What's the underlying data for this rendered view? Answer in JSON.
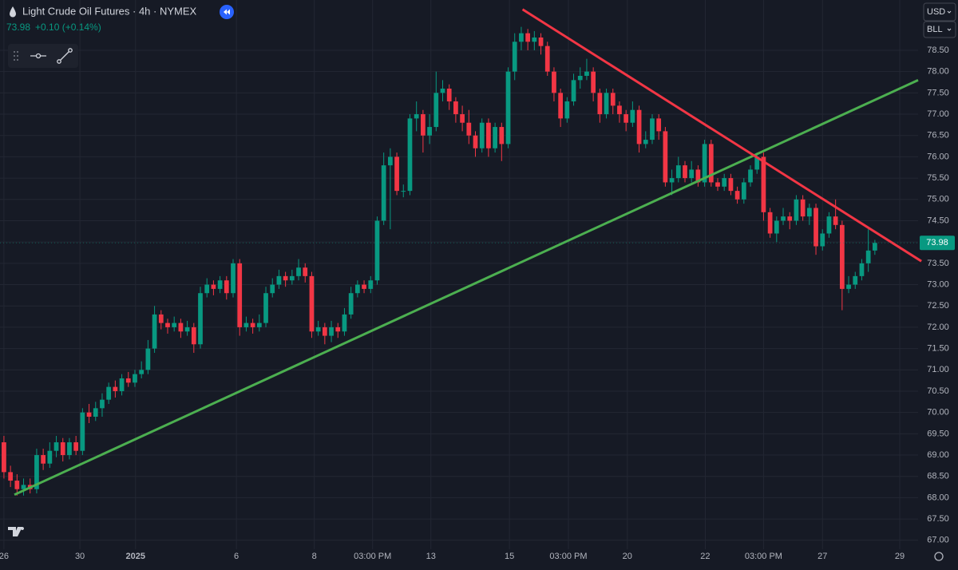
{
  "chart_data": {
    "type": "candlestick",
    "title": "Light Crude Oil Futures · 4h · NYMEX",
    "last_price": "73.98",
    "change": "+0.10 (+0.14%)",
    "currency": "USD",
    "unit": "BLL",
    "up_color": "#089981",
    "down_color": "#f23645",
    "open": [
      69.3,
      68.6,
      68.4,
      68.2,
      68.3,
      68.2,
      69.0,
      68.8,
      69.1,
      69.3,
      69.0,
      69.3,
      69.1,
      70.0,
      69.9,
      70.1,
      70.3,
      70.6,
      70.5,
      70.8,
      70.7,
      70.9,
      71.0,
      71.5,
      72.3,
      72.1,
      72.0,
      72.1,
      71.9,
      72.0,
      71.6,
      72.8,
      73.0,
      72.9,
      73.1,
      72.8,
      73.5,
      72.0,
      72.1,
      72.0,
      72.1,
      72.8,
      73.0,
      73.2,
      73.1,
      73.2,
      73.4,
      73.2,
      71.9,
      72.0,
      71.8,
      72.0,
      71.9,
      72.3,
      72.8,
      73.0,
      72.9,
      73.1,
      74.5,
      75.8,
      76.0,
      75.2,
      75.2,
      76.9,
      77.0,
      76.5,
      76.7,
      77.5,
      77.6,
      77.3,
      77.0,
      76.8,
      76.5,
      76.2,
      76.8,
      76.2,
      76.7,
      76.3,
      78.0,
      78.7,
      78.9,
      78.7,
      78.8,
      78.6,
      78.0,
      77.5,
      76.9,
      77.3,
      77.8,
      77.9,
      78.0,
      77.5,
      77.0,
      77.5,
      77.2,
      77.0,
      76.8,
      77.1,
      76.3,
      76.4,
      76.9,
      76.6,
      75.4,
      75.5,
      75.8,
      75.5,
      75.7,
      75.4,
      76.3,
      75.4,
      75.3,
      75.5,
      75.2,
      75.0,
      75.4,
      75.7,
      76.0,
      74.7,
      74.2,
      74.5,
      74.6,
      74.5,
      75.0,
      74.6,
      74.8,
      73.9,
      74.2,
      74.6,
      74.4,
      72.9,
      73.0,
      73.2,
      73.5,
      73.8
    ],
    "high": [
      69.45,
      68.75,
      68.55,
      68.45,
      68.45,
      69.15,
      69.15,
      69.3,
      69.45,
      69.4,
      69.4,
      69.45,
      70.1,
      70.2,
      70.25,
      70.45,
      70.7,
      70.75,
      70.9,
      70.95,
      71.0,
      71.2,
      71.7,
      72.5,
      72.4,
      72.2,
      72.25,
      72.2,
      72.15,
      72.1,
      72.95,
      73.15,
      73.1,
      73.2,
      73.2,
      73.6,
      73.6,
      72.25,
      72.2,
      72.3,
      72.95,
      73.15,
      73.35,
      73.3,
      73.35,
      73.6,
      73.5,
      73.3,
      72.15,
      72.1,
      72.15,
      72.1,
      72.45,
      72.95,
      73.1,
      73.1,
      73.2,
      74.6,
      76.1,
      76.2,
      76.1,
      75.35,
      77.0,
      77.3,
      77.1,
      77.0,
      78.0,
      77.8,
      77.7,
      77.4,
      77.2,
      77.1,
      76.6,
      76.9,
      76.9,
      76.8,
      76.8,
      78.1,
      78.9,
      79.05,
      79.0,
      78.95,
      78.9,
      78.7,
      78.1,
      77.6,
      77.4,
      77.95,
      78.1,
      78.3,
      78.1,
      77.6,
      77.6,
      77.6,
      77.3,
      77.1,
      77.3,
      77.2,
      76.6,
      77.0,
      77.0,
      76.7,
      75.7,
      76.0,
      75.9,
      75.9,
      75.8,
      76.4,
      76.4,
      75.5,
      75.6,
      75.6,
      75.3,
      75.5,
      75.8,
      76.1,
      76.1,
      74.8,
      74.6,
      74.8,
      74.7,
      75.1,
      75.1,
      74.9,
      74.9,
      74.3,
      74.7,
      75.0,
      74.5,
      73.2,
      73.3,
      73.6,
      74.3,
      74.05
    ],
    "low": [
      68.45,
      68.25,
      68.05,
      68.05,
      68.1,
      68.1,
      68.65,
      68.7,
      68.95,
      68.85,
      68.9,
      69.0,
      69.0,
      69.75,
      69.8,
      69.9,
      70.2,
      70.35,
      70.4,
      70.6,
      70.6,
      70.8,
      70.9,
      71.4,
      71.95,
      71.85,
      71.9,
      71.75,
      71.8,
      71.4,
      71.5,
      72.7,
      72.75,
      72.8,
      72.65,
      72.7,
      71.8,
      71.9,
      71.85,
      71.9,
      72.0,
      72.7,
      72.9,
      72.95,
      73.0,
      73.1,
      73.05,
      71.75,
      71.8,
      71.6,
      71.65,
      71.75,
      71.8,
      72.2,
      72.7,
      72.8,
      72.8,
      73.0,
      74.4,
      74.3,
      75.1,
      75.05,
      75.1,
      76.6,
      76.1,
      76.3,
      76.6,
      77.3,
      77.1,
      76.8,
      76.6,
      76.3,
      76.0,
      76.1,
      76.0,
      76.1,
      75.9,
      76.2,
      77.8,
      78.5,
      78.5,
      78.5,
      78.4,
      77.9,
      77.3,
      76.7,
      76.8,
      77.2,
      77.6,
      77.8,
      77.3,
      76.8,
      76.9,
      77.0,
      76.8,
      76.6,
      76.7,
      76.1,
      76.2,
      76.3,
      76.4,
      75.3,
      75.1,
      75.4,
      75.4,
      75.4,
      75.3,
      75.3,
      75.3,
      75.2,
      75.2,
      75.1,
      74.9,
      74.9,
      75.3,
      75.6,
      74.5,
      74.1,
      74.0,
      74.4,
      74.3,
      74.4,
      74.5,
      74.4,
      73.7,
      73.8,
      74.1,
      74.3,
      72.4,
      72.8,
      72.9,
      73.1,
      73.3,
      73.7
    ],
    "close": [
      68.6,
      68.4,
      68.2,
      68.3,
      68.2,
      69.0,
      68.8,
      69.1,
      69.3,
      69.0,
      69.3,
      69.1,
      70.0,
      69.9,
      70.1,
      70.3,
      70.6,
      70.5,
      70.8,
      70.7,
      70.9,
      71.0,
      71.5,
      72.3,
      72.1,
      72.0,
      72.1,
      71.9,
      72.0,
      71.6,
      72.8,
      73.0,
      72.9,
      73.1,
      72.8,
      73.5,
      72.0,
      72.1,
      72.0,
      72.1,
      72.8,
      73.0,
      73.2,
      73.1,
      73.2,
      73.4,
      73.2,
      71.9,
      72.0,
      71.8,
      72.0,
      71.9,
      72.3,
      72.8,
      73.0,
      72.9,
      73.1,
      74.5,
      75.8,
      76.0,
      75.2,
      75.2,
      76.9,
      77.0,
      76.5,
      76.7,
      77.5,
      77.6,
      77.3,
      77.0,
      76.8,
      76.5,
      76.2,
      76.8,
      76.2,
      76.7,
      76.3,
      78.0,
      78.7,
      78.9,
      78.7,
      78.8,
      78.6,
      78.0,
      77.5,
      76.9,
      77.3,
      77.8,
      77.9,
      78.0,
      77.5,
      77.0,
      77.5,
      77.2,
      77.0,
      76.8,
      77.1,
      76.3,
      76.4,
      76.9,
      76.6,
      75.4,
      75.5,
      75.8,
      75.5,
      75.7,
      75.4,
      76.3,
      75.4,
      75.3,
      75.5,
      75.2,
      75.0,
      75.4,
      75.7,
      76.0,
      74.7,
      74.2,
      74.5,
      74.6,
      74.5,
      75.0,
      74.6,
      74.8,
      73.9,
      74.2,
      74.6,
      74.4,
      72.9,
      73.0,
      73.2,
      73.5,
      73.8,
      73.98
    ],
    "trendlines": [
      {
        "color": "#4caf50",
        "x": [
          1.6,
          139.6
        ],
        "y": [
          68.07,
          77.8
        ]
      },
      {
        "color": "#f23645",
        "x": [
          79.2,
          140.1
        ],
        "y": [
          79.46,
          73.55
        ]
      }
    ],
    "xlim": [
      -0.6,
      139.6
    ],
    "xticks": [
      {
        "value": 0,
        "label": "26"
      },
      {
        "value": 11.6,
        "label": "30"
      },
      {
        "value": 20.1,
        "label": "2025"
      },
      {
        "value": 35.5,
        "label": "6"
      },
      {
        "value": 47.4,
        "label": "8"
      },
      {
        "value": 56.3,
        "label": "03:00 PM"
      },
      {
        "value": 65.2,
        "label": "13"
      },
      {
        "value": 77.2,
        "label": "15"
      },
      {
        "value": 86.2,
        "label": "03:00 PM"
      },
      {
        "value": 95.2,
        "label": "20"
      },
      {
        "value": 107.1,
        "label": "22"
      },
      {
        "value": 116,
        "label": "03:00 PM"
      },
      {
        "value": 125,
        "label": "27"
      },
      {
        "value": 136.8,
        "label": "29"
      }
    ],
    "ylim": [
      66.79,
      79.68
    ],
    "yticks": [
      {
        "value": 67,
        "label": "67.00"
      },
      {
        "value": 67.5,
        "label": "67.50"
      },
      {
        "value": 68,
        "label": "68.00"
      },
      {
        "value": 68.5,
        "label": "68.50"
      },
      {
        "value": 69,
        "label": "69.00"
      },
      {
        "value": 69.5,
        "label": "69.50"
      },
      {
        "value": 70,
        "label": "70.00"
      },
      {
        "value": 70.5,
        "label": "70.50"
      },
      {
        "value": 71,
        "label": "71.00"
      },
      {
        "value": 71.5,
        "label": "71.50"
      },
      {
        "value": 72,
        "label": "72.00"
      },
      {
        "value": 72.5,
        "label": "72.50"
      },
      {
        "value": 73,
        "label": "73.00"
      },
      {
        "value": 73.5,
        "label": "73.50"
      },
      {
        "value": 74,
        "label": "74.00"
      },
      {
        "value": 74.5,
        "label": "74.50"
      },
      {
        "value": 75,
        "label": "75.00"
      },
      {
        "value": 75.5,
        "label": "75.50"
      },
      {
        "value": 76,
        "label": "76.00"
      },
      {
        "value": 76.5,
        "label": "76.50"
      },
      {
        "value": 77,
        "label": "77.00"
      },
      {
        "value": 77.5,
        "label": "77.50"
      },
      {
        "value": 78,
        "label": "78.00"
      },
      {
        "value": 78.5,
        "label": "78.50"
      }
    ],
    "grid": true
  }
}
